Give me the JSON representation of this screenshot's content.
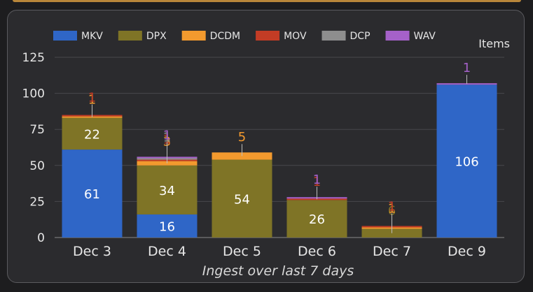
{
  "chart_data": {
    "type": "bar",
    "stacked": true,
    "title": "",
    "xlabel": "Ingest over last 7 days",
    "ylabel": "",
    "y_unit_label": "Items",
    "ylim": [
      0,
      125
    ],
    "yticks": [
      0,
      25,
      50,
      75,
      100,
      125
    ],
    "grid": true,
    "legend_position": "top",
    "categories": [
      "Dec 3",
      "Dec 4",
      "Dec 5",
      "Dec 6",
      "Dec 7",
      "Dec 9"
    ],
    "series": [
      {
        "name": "MKV",
        "color": "#2f66c7",
        "values": [
          61,
          16,
          0,
          0,
          0,
          106
        ]
      },
      {
        "name": "DPX",
        "color": "#7f7426",
        "values": [
          22,
          34,
          54,
          26,
          6,
          0
        ]
      },
      {
        "name": "DCDM",
        "color": "#f39a2e",
        "values": [
          1,
          3,
          5,
          0,
          1,
          0
        ]
      },
      {
        "name": "MOV",
        "color": "#c33c25",
        "values": [
          1,
          1,
          0,
          1,
          1,
          0
        ]
      },
      {
        "name": "DCP",
        "color": "#8e8e8e",
        "values": [
          0,
          1,
          0,
          0,
          0,
          0
        ]
      },
      {
        "name": "WAV",
        "color": "#a561c9",
        "values": [
          0,
          1,
          0,
          1,
          0,
          1
        ]
      }
    ]
  }
}
